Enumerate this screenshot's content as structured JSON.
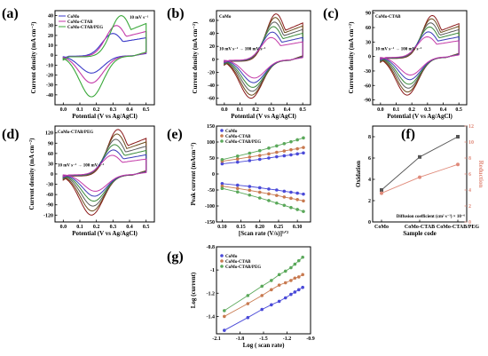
{
  "panels": [
    {
      "label": "(a)",
      "chart_data": {
        "type": "line",
        "subtype": "cyclic-voltammogram",
        "xlabel": "Potential (V vs Ag/AgCl)",
        "ylabel": "Current density (mA cm⁻²)",
        "xlim": [
          -0.05,
          0.55
        ],
        "ylim": [
          -50,
          45
        ],
        "xticks": [
          0.0,
          0.1,
          0.2,
          0.3,
          0.4,
          0.5
        ],
        "yticks": [
          -40,
          -30,
          -20,
          -10,
          0,
          10,
          20,
          30,
          40
        ],
        "ytick_labels": [
          "-40",
          "-30",
          "-20",
          "-10",
          "0",
          "10",
          "20",
          "30",
          "40"
        ],
        "annotation": "10 mV s⁻¹",
        "legend": [
          "CoMo",
          "CoMo-CTAB",
          "CoMo-CTAB/PEG"
        ],
        "series": [
          {
            "name": "CoMo",
            "color": "#3a3ac8",
            "anodic_peak": [
              0.3,
              20
            ],
            "cathodic_peak": [
              0.17,
              -18
            ],
            "top": 22,
            "bottom": -5
          },
          {
            "name": "CoMo-CTAB",
            "color": "#c43aa8",
            "anodic_peak": [
              0.32,
              30
            ],
            "cathodic_peak": [
              0.17,
              -28
            ],
            "top": 30,
            "bottom": -7
          },
          {
            "name": "CoMo-CTAB/PEG",
            "color": "#3aa83a",
            "anodic_peak": [
              0.35,
              38
            ],
            "cathodic_peak": [
              0.17,
              -42
            ],
            "top": 40,
            "bottom": -8
          }
        ]
      }
    },
    {
      "label": "(b)",
      "chart_data": {
        "type": "line",
        "subtype": "cyclic-voltammogram",
        "title": "CoMo",
        "xlabel": "Potential (V vs Ag/AgCl)",
        "ylabel": "Current density (mA cm⁻²)",
        "xlim": [
          -0.05,
          0.55
        ],
        "ylim": [
          -70,
          75
        ],
        "xticks": [
          0.0,
          0.1,
          0.2,
          0.3,
          0.4,
          0.5
        ],
        "yticks": [
          -60,
          -40,
          -20,
          0,
          20,
          40,
          60
        ],
        "ytick_labels": [
          "-60",
          "-40",
          "-20",
          "0",
          "20",
          "40",
          "60"
        ],
        "annotation": "10 mV s⁻¹ → 100 mV s⁻¹",
        "scale": [
          1,
          0.92,
          0.82,
          0.72,
          0.6,
          0.48
        ],
        "peak_anodic": 70,
        "peak_cathodic": -60
      }
    },
    {
      "label": "(c)",
      "chart_data": {
        "type": "line",
        "subtype": "cyclic-voltammogram",
        "title": "CoMo-CTAB",
        "xlabel": "Potential (V vs Ag/AgCl)",
        "ylabel": "Current density (mA cm⁻²)",
        "xlim": [
          -0.05,
          0.55
        ],
        "ylim": [
          -100,
          95
        ],
        "xticks": [
          0.0,
          0.1,
          0.2,
          0.3,
          0.4,
          0.5
        ],
        "yticks": [
          -90,
          -60,
          -30,
          0,
          30,
          60,
          90
        ],
        "ytick_labels": [
          "-90",
          "-60",
          "-30",
          "0",
          "30",
          "60",
          "90"
        ],
        "annotation": "10 mV s⁻¹ → 100 mV s⁻¹",
        "scale": [
          1,
          0.92,
          0.82,
          0.72,
          0.6,
          0.48
        ],
        "peak_anodic": 85,
        "peak_cathodic": -80
      }
    },
    {
      "label": "(d)",
      "chart_data": {
        "type": "line",
        "subtype": "cyclic-voltammogram",
        "title": "CoMo-CTAB/PEG",
        "xlabel": "Potential (V vs Ag/AgCl)",
        "ylabel": "Current density (mA cm⁻²)",
        "xlim": [
          -0.05,
          0.55
        ],
        "ylim": [
          -140,
          140
        ],
        "xticks": [
          0.0,
          0.1,
          0.2,
          0.3,
          0.4,
          0.5
        ],
        "yticks": [
          -120,
          -90,
          -60,
          -30,
          0,
          30,
          60,
          90,
          120
        ],
        "ytick_labels": [
          "-120",
          "-90",
          "-60",
          "-30",
          "0",
          "30",
          "60",
          "90",
          "120"
        ],
        "annotation": "10 mV s⁻¹ → 100 mV s⁻¹",
        "scale": [
          1,
          0.9,
          0.78,
          0.66,
          0.54,
          0.42
        ],
        "peak_anodic": 130,
        "peak_cathodic": -120
      }
    },
    {
      "label": "(e)",
      "chart_data": {
        "type": "scatter",
        "xlabel": "[Scan rate (V/s)]¹ᐟ²",
        "ylabel": "Peak current (mAcm⁻²)",
        "xlim": [
          0.085,
          0.335
        ],
        "ylim": [
          -150,
          150
        ],
        "xticks": [
          0.1,
          0.15,
          0.2,
          0.25,
          0.3
        ],
        "yticks": [
          -150,
          -100,
          -50,
          0,
          50,
          100,
          150
        ],
        "ytick_labels": [
          "-150",
          "-100",
          "-50",
          "0",
          "50",
          "100",
          "150"
        ],
        "x": [
          0.1,
          0.141,
          0.173,
          0.2,
          0.224,
          0.245,
          0.265,
          0.283,
          0.3,
          0.316
        ],
        "series": [
          {
            "name": "CoMo",
            "color": "#4a4ad8",
            "values": [
              32,
              37,
              42,
              46,
              50,
              54,
              57,
              60,
              63,
              66
            ]
          },
          {
            "name": "CoMo",
            "color": "#4a4ad8",
            "values": [
              -30,
              -35,
              -39,
              -43,
              -47,
              -50,
              -54,
              -57,
              -60,
              -63
            ]
          },
          {
            "name": "CoMo-CTAB",
            "color": "#c87a50",
            "values": [
              40,
              47,
              53,
              58,
              63,
              68,
              72,
              76,
              79,
              83
            ]
          },
          {
            "name": "CoMo-CTAB",
            "color": "#c87a50",
            "values": [
              -38,
              -45,
              -51,
              -57,
              -62,
              -67,
              -72,
              -76,
              -80,
              -84
            ]
          },
          {
            "name": "CoMo-CTAB/PEG",
            "color": "#5aa85a",
            "values": [
              45,
              56,
              65,
              73,
              81,
              88,
              95,
              101,
              107,
              113
            ]
          },
          {
            "name": "CoMo-CTAB/PEG",
            "color": "#5aa85a",
            "values": [
              -45,
              -56,
              -66,
              -75,
              -83,
              -91,
              -98,
              -105,
              -111,
              -117
            ]
          }
        ],
        "legend": [
          "CoMo",
          "CoMo-CTAB",
          "CoMo-CTAB/PEG"
        ]
      }
    },
    {
      "label": "(f)",
      "chart_data": {
        "type": "line",
        "categories": [
          "CoMo",
          "CoMo-CTAB",
          "CoMo-CTAB/PEG"
        ],
        "xlabel": "Sample code",
        "ylabel": "Oxidation",
        "y2label": "Reduction",
        "ylim": [
          0,
          9
        ],
        "y2lim": [
          0,
          12
        ],
        "yticks": [
          0,
          2,
          4,
          6,
          8
        ],
        "y2ticks": [
          0,
          2,
          4,
          6,
          8,
          10,
          12
        ],
        "annotation": "Diffusion coefficient (cm² s⁻¹) × 10⁻⁶",
        "series": [
          {
            "name": "Oxidation",
            "color": "#555555",
            "values": [
              3.0,
              6.1,
              8.0
            ]
          },
          {
            "name": "Reduction",
            "color": "#e08a7a",
            "values": [
              3.6,
              5.6,
              7.2
            ]
          }
        ]
      }
    },
    {
      "label": "(g)",
      "chart_data": {
        "type": "scatter",
        "xlabel": "Log ( scan rate)",
        "ylabel": "Log (current)",
        "xlim": [
          -2.1,
          -0.9
        ],
        "ylim": [
          -1.55,
          -0.8
        ],
        "xticks": [
          -2.1,
          -1.8,
          -1.5,
          -1.2,
          -0.9
        ],
        "yticks": [
          -1.4,
          -1.2,
          -1.0,
          -0.8
        ],
        "x": [
          -2.0,
          -1.7,
          -1.52,
          -1.4,
          -1.3,
          -1.22,
          -1.15,
          -1.1,
          -1.05,
          -1.0
        ],
        "series": [
          {
            "name": "CoMo",
            "color": "#4a4ad8",
            "values": [
              -1.52,
              -1.41,
              -1.34,
              -1.3,
              -1.27,
              -1.24,
              -1.21,
              -1.19,
              -1.17,
              -1.15
            ]
          },
          {
            "name": "CoMo-CTAB",
            "color": "#c87a50",
            "values": [
              -1.4,
              -1.29,
              -1.22,
              -1.17,
              -1.13,
              -1.11,
              -1.09,
              -1.07,
              -1.06,
              -1.04
            ]
          },
          {
            "name": "CoMo-CTAB/PEG",
            "color": "#5aa85a",
            "values": [
              -1.35,
              -1.22,
              -1.14,
              -1.09,
              -1.04,
              -1.01,
              -0.98,
              -0.95,
              -0.92,
              -0.89
            ]
          }
        ],
        "legend": [
          "CoMo",
          "CoMo-CTAB",
          "CoMo-CTAB/PEG"
        ]
      }
    }
  ]
}
